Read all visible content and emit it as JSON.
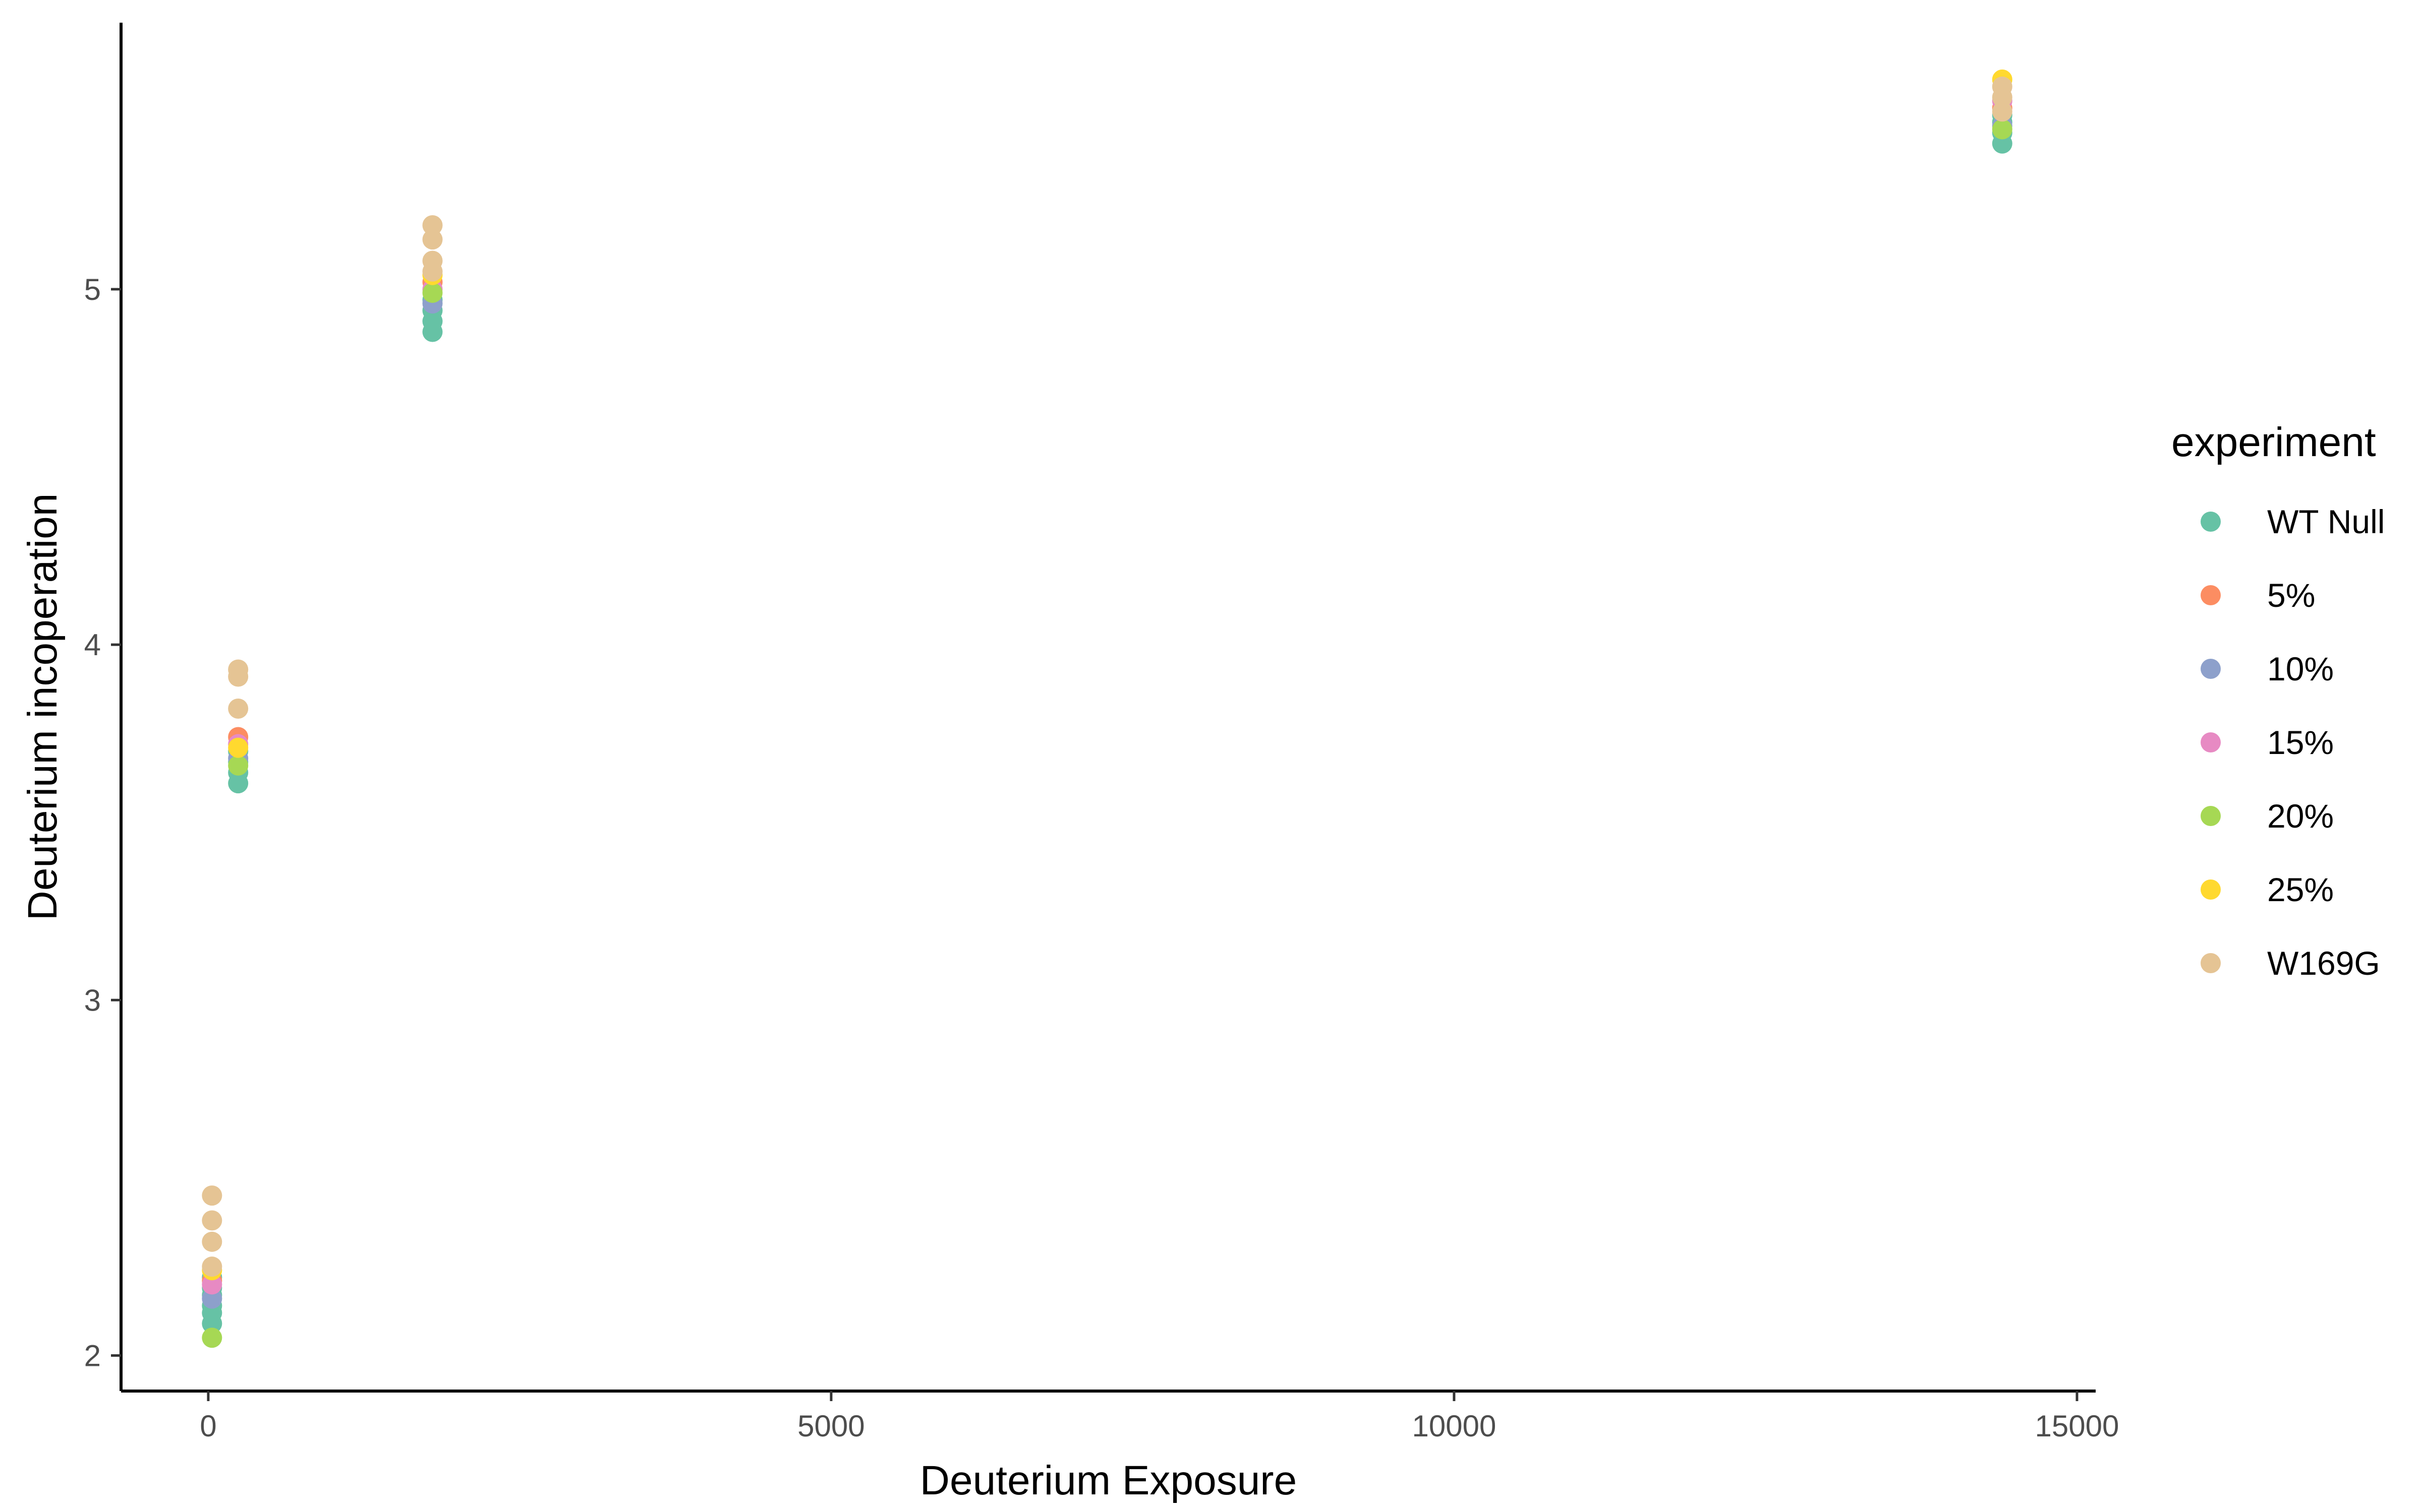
{
  "chart_data": {
    "type": "scatter",
    "title": "",
    "xlabel": "Deuterium Exposure",
    "ylabel": "Deuterium incoperation",
    "xlim": [
      -700,
      15150
    ],
    "ylim": [
      1.9,
      5.75
    ],
    "x_ticks": [
      0,
      5000,
      10000,
      15000
    ],
    "x_tick_labels": [
      "0",
      "5000",
      "10000",
      "15000"
    ],
    "y_ticks": [
      2,
      3,
      4,
      5
    ],
    "y_tick_labels": [
      "2",
      "3",
      "4",
      "5"
    ],
    "grid": false,
    "legend": {
      "title": "experiment",
      "position": "right"
    },
    "series": [
      {
        "name": "WT Null",
        "color": "#66C2A5",
        "points": [
          [
            30,
            2.09
          ],
          [
            30,
            2.12
          ],
          [
            30,
            2.14
          ],
          [
            30,
            2.17
          ],
          [
            30,
            2.19
          ],
          [
            30,
            2.22
          ],
          [
            240,
            3.61
          ],
          [
            240,
            3.64
          ],
          [
            240,
            3.67
          ],
          [
            240,
            3.7
          ],
          [
            1800,
            4.88
          ],
          [
            1800,
            4.91
          ],
          [
            1800,
            4.94
          ],
          [
            1800,
            4.97
          ],
          [
            14400,
            5.41
          ],
          [
            14400,
            5.44
          ],
          [
            14400,
            5.47
          ],
          [
            14400,
            5.49
          ]
        ]
      },
      {
        "name": "5%",
        "color": "#FC8D62",
        "points": [
          [
            30,
            2.21
          ],
          [
            240,
            3.74
          ],
          [
            1800,
            5.02
          ],
          [
            14400,
            5.51
          ]
        ]
      },
      {
        "name": "10%",
        "color": "#8DA0CB",
        "points": [
          [
            30,
            2.16
          ],
          [
            240,
            3.68
          ],
          [
            1800,
            4.96
          ],
          [
            14400,
            5.46
          ]
        ]
      },
      {
        "name": "15%",
        "color": "#E78AC3",
        "points": [
          [
            30,
            2.2
          ],
          [
            240,
            3.72
          ],
          [
            1800,
            5.0
          ],
          [
            14400,
            5.53
          ]
        ]
      },
      {
        "name": "20%",
        "color": "#A6D854",
        "points": [
          [
            30,
            2.05
          ],
          [
            240,
            3.66
          ],
          [
            1800,
            4.99
          ],
          [
            14400,
            5.45
          ]
        ]
      },
      {
        "name": "25%",
        "color": "#FFD92F",
        "points": [
          [
            30,
            2.24
          ],
          [
            240,
            3.71
          ],
          [
            1800,
            5.04
          ],
          [
            14400,
            5.59
          ]
        ]
      },
      {
        "name": "W169G",
        "color": "#E5C494",
        "points": [
          [
            30,
            2.25
          ],
          [
            30,
            2.32
          ],
          [
            30,
            2.38
          ],
          [
            30,
            2.45
          ],
          [
            240,
            3.82
          ],
          [
            240,
            3.91
          ],
          [
            240,
            3.93
          ],
          [
            1800,
            5.05
          ],
          [
            1800,
            5.08
          ],
          [
            1800,
            5.14
          ],
          [
            1800,
            5.18
          ],
          [
            14400,
            5.5
          ],
          [
            14400,
            5.54
          ],
          [
            14400,
            5.57
          ]
        ]
      }
    ]
  }
}
